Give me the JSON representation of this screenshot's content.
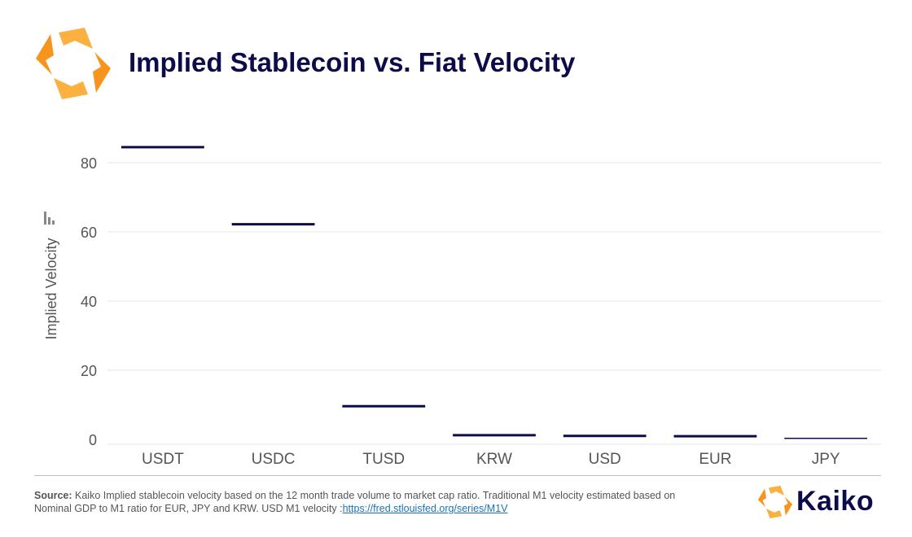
{
  "header": {
    "title": "Implied Stablecoin vs. Fiat Velocity"
  },
  "colors": {
    "navy": "#0d0c4a",
    "orange": "#f7941d",
    "gold": "#fbb040",
    "grid": "#e6e6e6"
  },
  "icons": {
    "top_logo": "kaiko-logo-icon",
    "bottom_logo": "kaiko-brand-icon",
    "watermark": "bar-chart-icon"
  },
  "chart_data": {
    "type": "bar",
    "categories": [
      "USDT",
      "USDC",
      "TUSD",
      "KRW",
      "USD",
      "EUR",
      "JPY"
    ],
    "values": [
      84.5,
      62.2,
      9.6,
      1.2,
      1.0,
      0.9,
      0.3
    ],
    "ylabel": "Implied Velocity",
    "xlabel": "",
    "ylim": [
      0,
      90
    ],
    "yticks": [
      0,
      20,
      40,
      60,
      80
    ],
    "grid": true,
    "legend": "none"
  },
  "footer": {
    "source_label": "Source:",
    "source_text": " Kaiko Implied stablecoin velocity based on the 12 month trade volume to market cap ratio. Traditional M1 velocity estimated based on Nominal GDP to M1 ratio for EUR, JPY and KRW. USD M1 velocity :",
    "source_link": "https://fred.stlouisfed.org/series/M1V",
    "brand": "Kaiko"
  }
}
